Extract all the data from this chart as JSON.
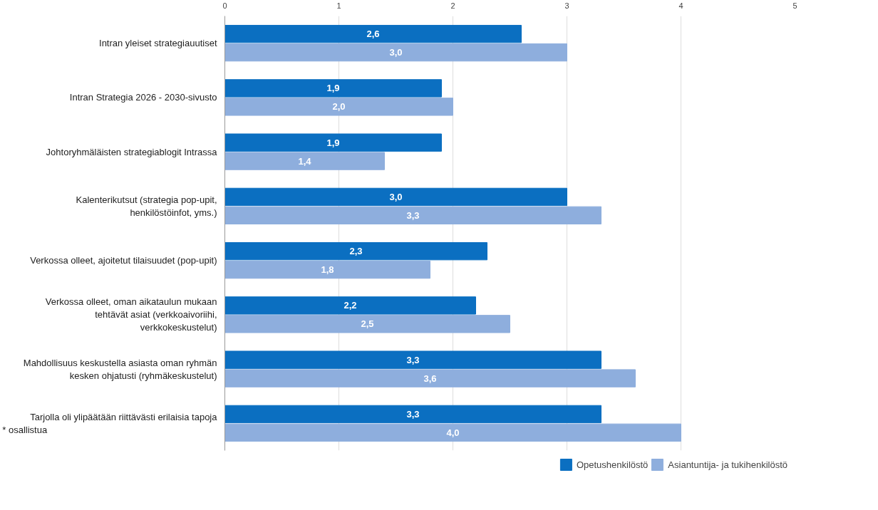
{
  "chart_data": {
    "type": "bar",
    "orientation": "horizontal",
    "categories": [
      "Intran yleiset strategiauutiset",
      "Intran Strategia 2026 - 2030-sivusto",
      "Johtoryhmäläisten strategiablogit Intrassa",
      "Kalenterikutsut (strategia pop-upit,\nhenkilöstöinfot, yms.)",
      "Verkossa olleet, ajoitetut tilaisuudet (pop-upit)",
      "Verkossa olleet, oman aikataulun mukaan\ntehtävät asiat (verkkoaivoriihi,\nverkkokeskustelut)",
      "Mahdollisuus keskustella asiasta oman ryhmän\nkesken ohjatusti (ryhmäkeskustelut)",
      "Tarjolla oli ylipäätään riittävästi erilaisia tapoja\n*                                                                   osallistua"
    ],
    "series": [
      {
        "name": "Opetushenkilöstö",
        "color": "#0b6fc1",
        "values": [
          2.6,
          1.9,
          1.9,
          3.0,
          2.3,
          2.2,
          3.3,
          3.3
        ],
        "value_labels": [
          "2,6",
          "1,9",
          "1,9",
          "3,0",
          "2,3",
          "2,2",
          "3,3",
          "3,3"
        ]
      },
      {
        "name": "Asiantuntija- ja tukihenkilöstö",
        "color": "#8eaedd",
        "values": [
          3.0,
          2.0,
          1.4,
          3.3,
          1.8,
          2.5,
          3.6,
          4.0
        ],
        "value_labels": [
          "3,0",
          "2,0",
          "1,4",
          "3,3",
          "1,8",
          "2,5",
          "3,6",
          "4,0"
        ]
      }
    ],
    "xlim": [
      0,
      5
    ],
    "xticks": [
      0,
      1,
      2,
      3,
      4,
      5
    ],
    "grid": "x",
    "legend": "bottom"
  }
}
